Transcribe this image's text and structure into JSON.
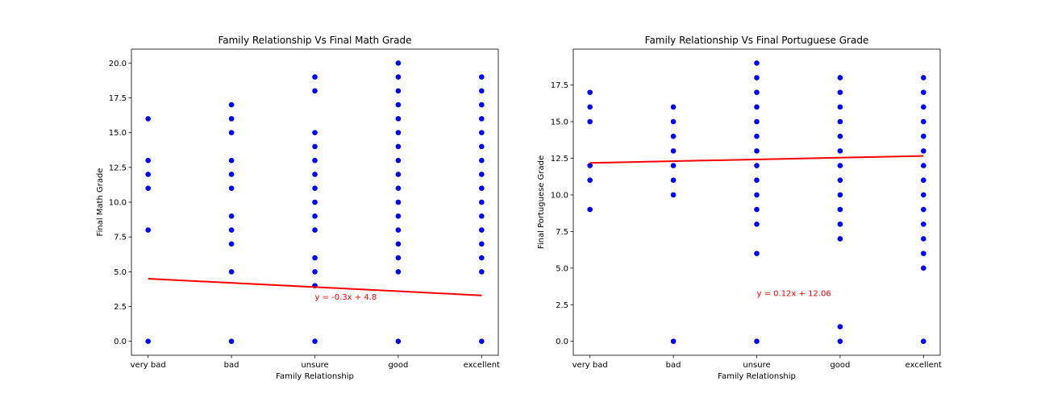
{
  "chart_data": [
    {
      "type": "scatter",
      "title": "Family Relationship Vs Final Math Grade",
      "xlabel": "Family Relationship",
      "ylabel": "Final Math Grade",
      "categories": [
        "very bad",
        "bad",
        "unsure",
        "good",
        "excellent"
      ],
      "yticks": [
        "0.0",
        "2.5",
        "5.0",
        "7.5",
        "10.0",
        "12.5",
        "15.0",
        "17.5",
        "20.0"
      ],
      "ylim": [
        -1,
        21
      ],
      "grid": false,
      "marker_color": "#0000ff",
      "line_color": "#ff0000",
      "points_by_category": [
        [
          0,
          8,
          11,
          12,
          13,
          16
        ],
        [
          0,
          5,
          7,
          8,
          9,
          11,
          12,
          13,
          15,
          16,
          17
        ],
        [
          0,
          4,
          5,
          6,
          8,
          9,
          10,
          11,
          12,
          13,
          14,
          15,
          18,
          19
        ],
        [
          0,
          5,
          6,
          7,
          8,
          9,
          10,
          11,
          12,
          13,
          14,
          15,
          16,
          17,
          18,
          19,
          20
        ],
        [
          0,
          5,
          6,
          7,
          8,
          9,
          10,
          11,
          12,
          13,
          14,
          15,
          16,
          17,
          18,
          19
        ]
      ],
      "fit": {
        "slope": -0.3,
        "intercept": 4.8
      },
      "annotation": "y = -0.3x + 4.8",
      "annotation_anchor": {
        "category_index": 2,
        "y": 3.0
      }
    },
    {
      "type": "scatter",
      "title": "Family Relationship Vs Final Portuguese Grade",
      "xlabel": "Family Relationship",
      "ylabel": "Final Portuguese Grade",
      "categories": [
        "very bad",
        "bad",
        "unsure",
        "good",
        "excellent"
      ],
      "yticks": [
        "0.0",
        "2.5",
        "5.0",
        "7.5",
        "10.0",
        "12.5",
        "15.0",
        "17.5"
      ],
      "ylim": [
        -0.95,
        19.95
      ],
      "grid": false,
      "marker_color": "#0000ff",
      "line_color": "#ff0000",
      "points_by_category": [
        [
          9,
          11,
          12,
          15,
          16,
          17
        ],
        [
          0,
          10,
          11,
          12,
          13,
          14,
          15,
          16
        ],
        [
          0,
          6,
          8,
          9,
          10,
          11,
          12,
          13,
          14,
          15,
          16,
          17,
          18,
          19
        ],
        [
          0,
          1,
          7,
          8,
          9,
          10,
          11,
          12,
          13,
          14,
          15,
          16,
          17,
          18
        ],
        [
          0,
          5,
          6,
          7,
          8,
          9,
          10,
          11,
          12,
          13,
          14,
          15,
          16,
          17,
          18
        ]
      ],
      "fit": {
        "slope": 0.12,
        "intercept": 12.06
      },
      "annotation": "y = 0.12x + 12.06",
      "annotation_anchor": {
        "category_index": 2,
        "y": 3.1
      }
    }
  ]
}
